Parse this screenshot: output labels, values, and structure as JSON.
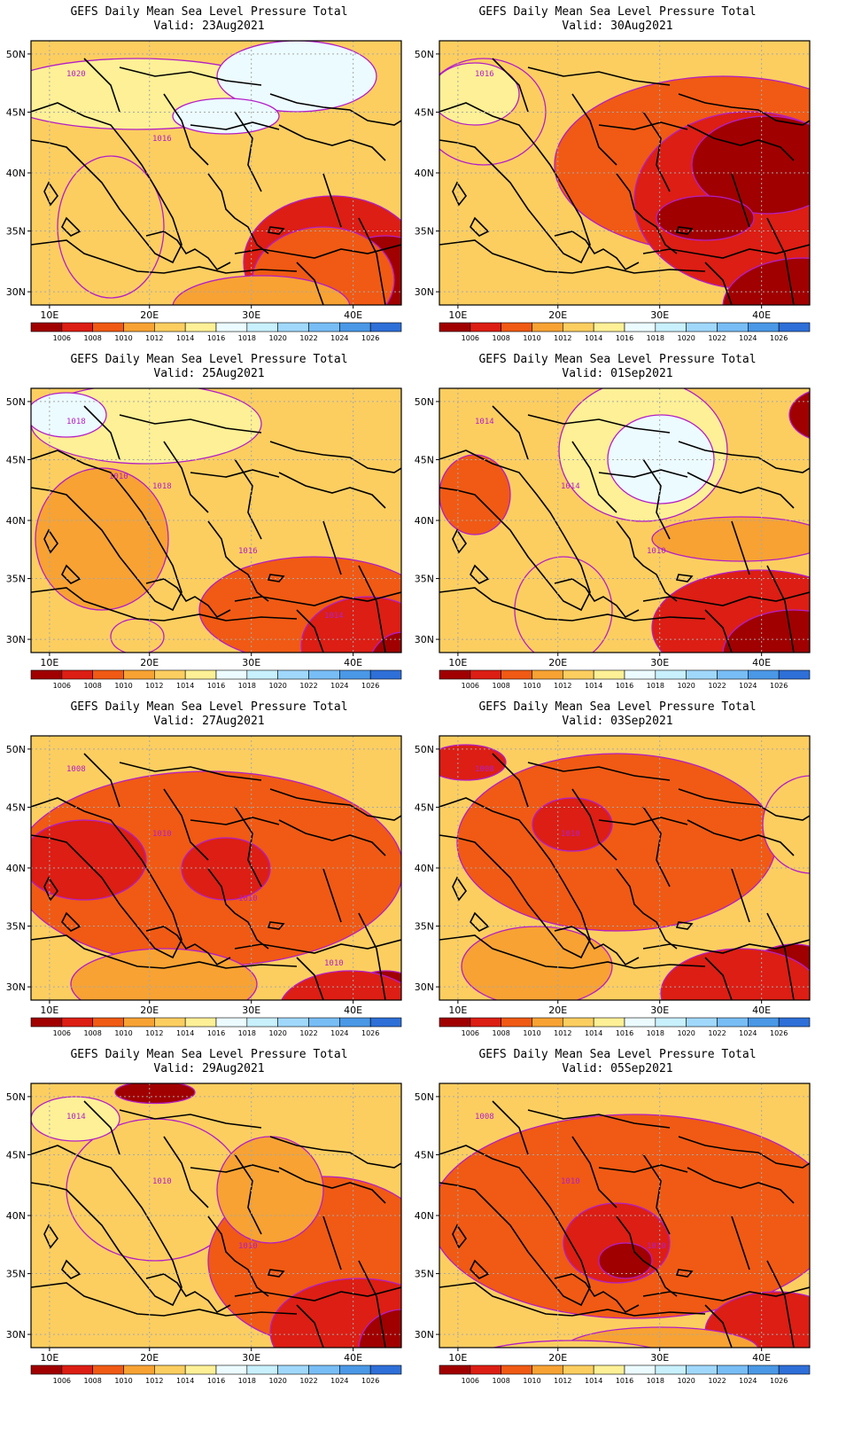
{
  "title": "GEFS Daily Mean Sea Level Pressure Total",
  "valid_prefix": "Valid:",
  "lat_labels": [
    "50N",
    "45N",
    "40N",
    "35N",
    "30N"
  ],
  "lon_labels": [
    "10E",
    "20E",
    "30E",
    "40E"
  ],
  "colorbar": {
    "labels": [
      "1006",
      "1008",
      "1010",
      "1012",
      "1014",
      "1016",
      "1018",
      "1020",
      "1022",
      "1024",
      "1026"
    ],
    "colors": [
      "#a00000",
      "#dc1e14",
      "#f05a14",
      "#f7a233",
      "#fcce60",
      "#fdf096",
      "#ecfbff",
      "#c8f0fd",
      "#a0d8fc",
      "#78bdf5",
      "#4a98e6",
      "#2e6fd8"
    ]
  },
  "contour_colors": {
    "line": "#b41ec8",
    "coast": "#000000",
    "grid": "#a8a8a8"
  },
  "panels": [
    {
      "date": "23Aug2021",
      "labels": [
        "1020",
        "1016"
      ],
      "blobs": [
        [
          "c6",
          120,
          60,
          320,
          80
        ],
        [
          "c5",
          90,
          210,
          120,
          160
        ],
        [
          "c7",
          300,
          40,
          180,
          80
        ],
        [
          "c7",
          220,
          85,
          120,
          40
        ],
        [
          "c2",
          340,
          250,
          200,
          150
        ],
        [
          "c1",
          400,
          280,
          140,
          120
        ],
        [
          "c3",
          330,
          270,
          160,
          120
        ],
        [
          "c4",
          260,
          300,
          200,
          70
        ]
      ]
    },
    {
      "date": "30Aug2021",
      "labels": [
        "1016"
      ],
      "blobs": [
        [
          "c3",
          320,
          140,
          380,
          200
        ],
        [
          "c2",
          350,
          180,
          260,
          200
        ],
        [
          "c1",
          370,
          140,
          170,
          110
        ],
        [
          "c1",
          410,
          300,
          180,
          110
        ],
        [
          "c1",
          300,
          200,
          110,
          50
        ],
        [
          "c5",
          50,
          80,
          140,
          120
        ],
        [
          "c6",
          40,
          60,
          100,
          70
        ]
      ]
    },
    {
      "date": "25Aug2021",
      "labels": [
        "1018",
        "1018",
        "1016",
        "1014",
        "1010"
      ],
      "blobs": [
        [
          "c6",
          130,
          40,
          260,
          90
        ],
        [
          "c7",
          40,
          30,
          90,
          50
        ],
        [
          "c4",
          80,
          170,
          150,
          160
        ],
        [
          "c3",
          320,
          250,
          260,
          120
        ],
        [
          "c2",
          380,
          290,
          150,
          110
        ],
        [
          "c1",
          420,
          320,
          80,
          90
        ],
        [
          "c5",
          120,
          280,
          60,
          40
        ]
      ]
    },
    {
      "date": "01Sep2021",
      "labels": [
        "1014",
        "1014",
        "1010"
      ],
      "blobs": [
        [
          "c6",
          230,
          70,
          190,
          160
        ],
        [
          "c7",
          250,
          80,
          120,
          100
        ],
        [
          "c1",
          440,
          30,
          90,
          60
        ],
        [
          "c3",
          40,
          120,
          80,
          90
        ],
        [
          "c2",
          360,
          270,
          240,
          130
        ],
        [
          "c1",
          400,
          300,
          160,
          100
        ],
        [
          "c4",
          340,
          170,
          200,
          50
        ],
        [
          "c5",
          140,
          250,
          110,
          120
        ]
      ]
    },
    {
      "date": "27Aug2021",
      "labels": [
        "1008",
        "1010",
        "1010",
        "1010"
      ],
      "blobs": [
        [
          "c3",
          200,
          150,
          440,
          220
        ],
        [
          "c2",
          60,
          140,
          140,
          90
        ],
        [
          "c2",
          220,
          150,
          100,
          70
        ],
        [
          "c1",
          400,
          320,
          120,
          110
        ],
        [
          "c2",
          360,
          310,
          160,
          90
        ],
        [
          "c4",
          150,
          280,
          210,
          80
        ]
      ]
    },
    {
      "date": "03Sep2021",
      "labels": [
        "1008",
        "1010"
      ],
      "blobs": [
        [
          "c3",
          200,
          120,
          360,
          200
        ],
        [
          "c2",
          150,
          100,
          90,
          60
        ],
        [
          "c2",
          30,
          30,
          90,
          40
        ],
        [
          "c1",
          400,
          290,
          130,
          110
        ],
        [
          "c2",
          340,
          290,
          180,
          100
        ],
        [
          "c5",
          420,
          100,
          110,
          110
        ],
        [
          "c4",
          110,
          260,
          170,
          90
        ]
      ]
    },
    {
      "date": "29Aug2021",
      "labels": [
        "1014",
        "1010",
        "1010"
      ],
      "blobs": [
        [
          "c5",
          140,
          120,
          200,
          160
        ],
        [
          "c6",
          50,
          40,
          100,
          50
        ],
        [
          "c1",
          140,
          10,
          90,
          25
        ],
        [
          "c3",
          330,
          200,
          260,
          190
        ],
        [
          "c2",
          370,
          280,
          200,
          120
        ],
        [
          "c1",
          420,
          300,
          100,
          90
        ],
        [
          "c4",
          270,
          120,
          120,
          120
        ]
      ]
    },
    {
      "date": "05Sep2021",
      "labels": [
        "1008",
        "1010",
        "1010"
      ],
      "blobs": [
        [
          "c3",
          220,
          150,
          460,
          230
        ],
        [
          "c2",
          200,
          180,
          120,
          90
        ],
        [
          "c1",
          210,
          200,
          60,
          40
        ],
        [
          "c2",
          380,
          280,
          160,
          90
        ],
        [
          "c4",
          250,
          300,
          220,
          50
        ],
        [
          "c5",
          150,
          320,
          260,
          60
        ]
      ]
    }
  ]
}
